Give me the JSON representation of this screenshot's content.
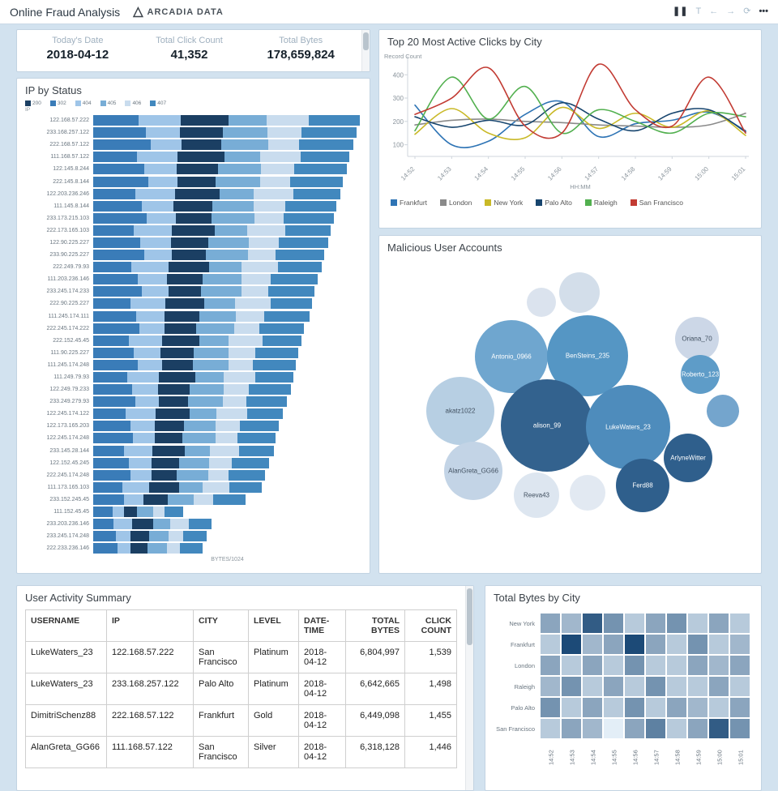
{
  "header": {
    "title": "Online Fraud Analysis",
    "brand": "ARCADIA DATA",
    "icons": {
      "pause": "❚❚",
      "filter": "T",
      "back": "←",
      "forward": "→",
      "refresh": "⟳",
      "more": "•••"
    }
  },
  "kpis": [
    {
      "label": "Today's Date",
      "value": "2018-04-12"
    },
    {
      "label": "Total Click Count",
      "value": "41,352"
    },
    {
      "label": "Total Bytes",
      "value": "178,659,824"
    }
  ],
  "chart_data": [
    {
      "type": "bar",
      "id": "ip_by_status",
      "title": "IP by Status",
      "orientation": "horizontal-stacked",
      "xlabel": "BYTES/1024",
      "ylabel": "IP",
      "statuses": [
        {
          "label": "200",
          "color": "#1b3f63"
        },
        {
          "label": "302",
          "color": "#3a7cb8"
        },
        {
          "label": "404",
          "color": "#9fc5e8"
        },
        {
          "label": "405",
          "color": "#78add6"
        },
        {
          "label": "406",
          "color": "#c9dcee"
        },
        {
          "label": "407",
          "color": "#4288be"
        }
      ],
      "segment_order": [
        "302",
        "404",
        "200",
        "405",
        "406",
        "407"
      ],
      "rows": [
        {
          "ip": "122.168.57.222",
          "values": [
            580,
            540,
            610,
            480,
            540,
            650
          ]
        },
        {
          "ip": "233.168.257.122",
          "values": [
            670,
            440,
            540,
            570,
            440,
            700
          ]
        },
        {
          "ip": "222.168.57.122",
          "values": [
            730,
            400,
            500,
            600,
            400,
            690
          ]
        },
        {
          "ip": "111.168.57.122",
          "values": [
            560,
            520,
            590,
            460,
            520,
            620
          ]
        },
        {
          "ip": "122.145.8.244",
          "values": [
            650,
            420,
            520,
            550,
            420,
            680
          ]
        },
        {
          "ip": "222.145.8.144",
          "values": [
            700,
            380,
            480,
            570,
            380,
            670
          ]
        },
        {
          "ip": "122.203.236.246",
          "values": [
            540,
            500,
            570,
            440,
            500,
            600
          ]
        },
        {
          "ip": "111.145.8.144",
          "values": [
            620,
            400,
            500,
            530,
            400,
            650
          ]
        },
        {
          "ip": "233.173.215.103",
          "values": [
            680,
            370,
            460,
            550,
            370,
            640
          ]
        },
        {
          "ip": "222.173.165.103",
          "values": [
            520,
            480,
            550,
            420,
            480,
            580
          ]
        },
        {
          "ip": "122.90.225.227",
          "values": [
            600,
            390,
            480,
            510,
            390,
            630
          ]
        },
        {
          "ip": "233.90.225.227",
          "values": [
            650,
            350,
            440,
            530,
            350,
            620
          ]
        },
        {
          "ip": "222.249.79.93",
          "values": [
            490,
            470,
            520,
            410,
            470,
            550
          ]
        },
        {
          "ip": "111.203.236.146",
          "values": [
            570,
            370,
            460,
            490,
            370,
            600
          ]
        },
        {
          "ip": "233.245.174.233",
          "values": [
            620,
            340,
            420,
            510,
            340,
            590
          ]
        },
        {
          "ip": "222.90.225.227",
          "values": [
            470,
            450,
            500,
            390,
            450,
            530
          ]
        },
        {
          "ip": "111.245.174.111",
          "values": [
            550,
            360,
            440,
            470,
            360,
            580
          ]
        },
        {
          "ip": "222.245.174.222",
          "values": [
            590,
            320,
            400,
            490,
            320,
            570
          ]
        },
        {
          "ip": "222.152.45.45",
          "values": [
            450,
            430,
            480,
            370,
            430,
            500
          ]
        },
        {
          "ip": "111.90.225.227",
          "values": [
            520,
            340,
            420,
            450,
            340,
            550
          ]
        },
        {
          "ip": "111.245.174.248",
          "values": [
            570,
            310,
            390,
            460,
            310,
            540
          ]
        },
        {
          "ip": "111.249.79.93",
          "values": [
            430,
            410,
            460,
            360,
            410,
            480
          ]
        },
        {
          "ip": "122.249.79.233",
          "values": [
            500,
            330,
            400,
            430,
            330,
            530
          ]
        },
        {
          "ip": "233.249.279.93",
          "values": [
            540,
            300,
            370,
            440,
            300,
            520
          ]
        },
        {
          "ip": "122.245.174.122",
          "values": [
            410,
            390,
            430,
            340,
            390,
            460
          ]
        },
        {
          "ip": "122.173.165.203",
          "values": [
            470,
            310,
            380,
            400,
            310,
            500
          ]
        },
        {
          "ip": "122.245.174.248",
          "values": [
            510,
            280,
            350,
            420,
            280,
            490
          ]
        },
        {
          "ip": "233.145.28.144",
          "values": [
            390,
            370,
            410,
            320,
            370,
            440
          ]
        },
        {
          "ip": "122.152.45.245",
          "values": [
            450,
            290,
            360,
            380,
            290,
            470
          ]
        },
        {
          "ip": "222.245.174.248",
          "values": [
            480,
            260,
            330,
            400,
            260,
            460
          ]
        },
        {
          "ip": "111.173.165.103",
          "values": [
            370,
            340,
            390,
            300,
            340,
            410
          ]
        },
        {
          "ip": "233.152.245.45",
          "values": [
            390,
            250,
            310,
            330,
            250,
            410
          ]
        },
        {
          "ip": "111.152.45.45",
          "values": [
            250,
            140,
            170,
            210,
            140,
            240
          ]
        },
        {
          "ip": "233.203.236.146",
          "values": [
            260,
            240,
            270,
            210,
            240,
            290
          ]
        },
        {
          "ip": "233.245.174.248",
          "values": [
            290,
            190,
            230,
            250,
            190,
            300
          ]
        },
        {
          "ip": "222.233.236.146",
          "values": [
            310,
            170,
            210,
            250,
            170,
            290
          ]
        }
      ]
    },
    {
      "type": "line",
      "id": "clicks_by_city",
      "title": "Top 20 Most Active Clicks by City",
      "ylabel": "Record Count",
      "xlabel": "HH:MM",
      "x": [
        "14:52",
        "14:53",
        "14:54",
        "14:55",
        "14:56",
        "14:57",
        "14:58",
        "14:59",
        "15:00",
        "15:01"
      ],
      "yticks": [
        100,
        200,
        300,
        400
      ],
      "ylim": [
        50,
        460
      ],
      "series": [
        {
          "name": "Frankfurt",
          "color": "#2e74b5",
          "values": [
            270,
            100,
            115,
            230,
            285,
            135,
            190,
            205,
            240,
            160
          ]
        },
        {
          "name": "London",
          "color": "#8a8a8a",
          "values": [
            185,
            205,
            210,
            200,
            195,
            185,
            180,
            175,
            185,
            235
          ]
        },
        {
          "name": "New York",
          "color": "#c9b927",
          "values": [
            145,
            255,
            150,
            130,
            260,
            170,
            235,
            175,
            245,
            140
          ]
        },
        {
          "name": "Palo Alto",
          "color": "#17456e",
          "values": [
            220,
            175,
            205,
            185,
            280,
            210,
            160,
            235,
            250,
            155
          ]
        },
        {
          "name": "Raleigh",
          "color": "#52b04f",
          "values": [
            160,
            390,
            210,
            350,
            150,
            250,
            200,
            150,
            235,
            220
          ]
        },
        {
          "name": "San Francisco",
          "color": "#c23b33",
          "values": [
            230,
            300,
            430,
            180,
            150,
            445,
            250,
            180,
            390,
            150
          ]
        }
      ]
    },
    {
      "type": "bubble",
      "id": "malicious_users",
      "title": "Malicious User Accounts",
      "bubbles": [
        {
          "label": "",
          "x": 200,
          "y": 58,
          "r": 18,
          "color": "#dbe3ee"
        },
        {
          "label": "",
          "x": 247,
          "y": 46,
          "r": 25,
          "color": "#d3deea"
        },
        {
          "label": "Oriana_70",
          "x": 392,
          "y": 103,
          "r": 27,
          "color": "#ccd7e7"
        },
        {
          "label": "Antonio_0966",
          "x": 163,
          "y": 125,
          "r": 45,
          "color": "#6fa6cf"
        },
        {
          "label": "BenSteins_235",
          "x": 257,
          "y": 124,
          "r": 50,
          "color": "#5596c4"
        },
        {
          "label": "Roberto_123",
          "x": 396,
          "y": 147,
          "r": 24,
          "color": "#5e9cc8"
        },
        {
          "label": "akatz1022",
          "x": 100,
          "y": 192,
          "r": 42,
          "color": "#b7cfe3"
        },
        {
          "label": "alison_99",
          "x": 207,
          "y": 210,
          "r": 57,
          "color": "#33628e"
        },
        {
          "label": "LukeWaters_23",
          "x": 307,
          "y": 212,
          "r": 52,
          "color": "#4e8cbc"
        },
        {
          "label": "",
          "x": 424,
          "y": 192,
          "r": 20,
          "color": "#74a5cd"
        },
        {
          "label": "ArlyneWitter",
          "x": 381,
          "y": 250,
          "r": 30,
          "color": "#2f5f8c"
        },
        {
          "label": "AlanGreta_GG66",
          "x": 116,
          "y": 266,
          "r": 36,
          "color": "#c3d4e6"
        },
        {
          "label": "Reeva43",
          "x": 194,
          "y": 296,
          "r": 28,
          "color": "#dde6f0"
        },
        {
          "label": "",
          "x": 257,
          "y": 293,
          "r": 22,
          "color": "#e2e9f2"
        },
        {
          "label": "Ferd88",
          "x": 325,
          "y": 284,
          "r": 33,
          "color": "#2f5f8c"
        }
      ]
    },
    {
      "type": "heatmap",
      "id": "bytes_by_city",
      "title": "Total Bytes by City",
      "x": [
        "14:52",
        "14:53",
        "14:54",
        "14:55",
        "14:56",
        "14:57",
        "14:58",
        "14:59",
        "15:00",
        "15:01"
      ],
      "cities": [
        "New York",
        "Frankfurt",
        "London",
        "Raleigh",
        "Palo Alto",
        "San Francisco"
      ],
      "values": [
        [
          5,
          4,
          9,
          6,
          3,
          5,
          6,
          3,
          5,
          3
        ],
        [
          3,
          10,
          4,
          5,
          10,
          5,
          3,
          6,
          3,
          4
        ],
        [
          5,
          3,
          5,
          3,
          6,
          3,
          3,
          5,
          4,
          5
        ],
        [
          4,
          6,
          3,
          5,
          3,
          6,
          3,
          3,
          5,
          3
        ],
        [
          6,
          3,
          5,
          3,
          6,
          3,
          5,
          4,
          3,
          5
        ],
        [
          3,
          5,
          4,
          1,
          5,
          7,
          3,
          5,
          9,
          6
        ]
      ],
      "scale": {
        "min_color": "#e3eef7",
        "max_color": "#1c4a77"
      }
    }
  ],
  "user_table": {
    "title": "User Activity Summary",
    "columns": [
      "USERNAME",
      "IP",
      "CITY",
      "LEVEL",
      "DATE-TIME",
      "TOTAL BYTES",
      "CLICK COUNT"
    ],
    "numeric_columns": [
      5,
      6
    ],
    "rows": [
      [
        "LukeWaters_23",
        "122.168.57.222",
        "San Francisco",
        "Platinum",
        "2018- 04-12",
        "6,804,997",
        "1,539"
      ],
      [
        "LukeWaters_23",
        "233.168.257.122",
        "Palo Alto",
        "Platinum",
        "2018- 04-12",
        "6,642,665",
        "1,498"
      ],
      [
        "DimitriSchenz88",
        "222.168.57.122",
        "Frankfurt",
        "Gold",
        "2018- 04-12",
        "6,449,098",
        "1,455"
      ],
      [
        "AlanGreta_GG66",
        "111.168.57.122",
        "San Francisco",
        "Silver",
        "2018- 04-12",
        "6,318,128",
        "1,446"
      ]
    ]
  }
}
